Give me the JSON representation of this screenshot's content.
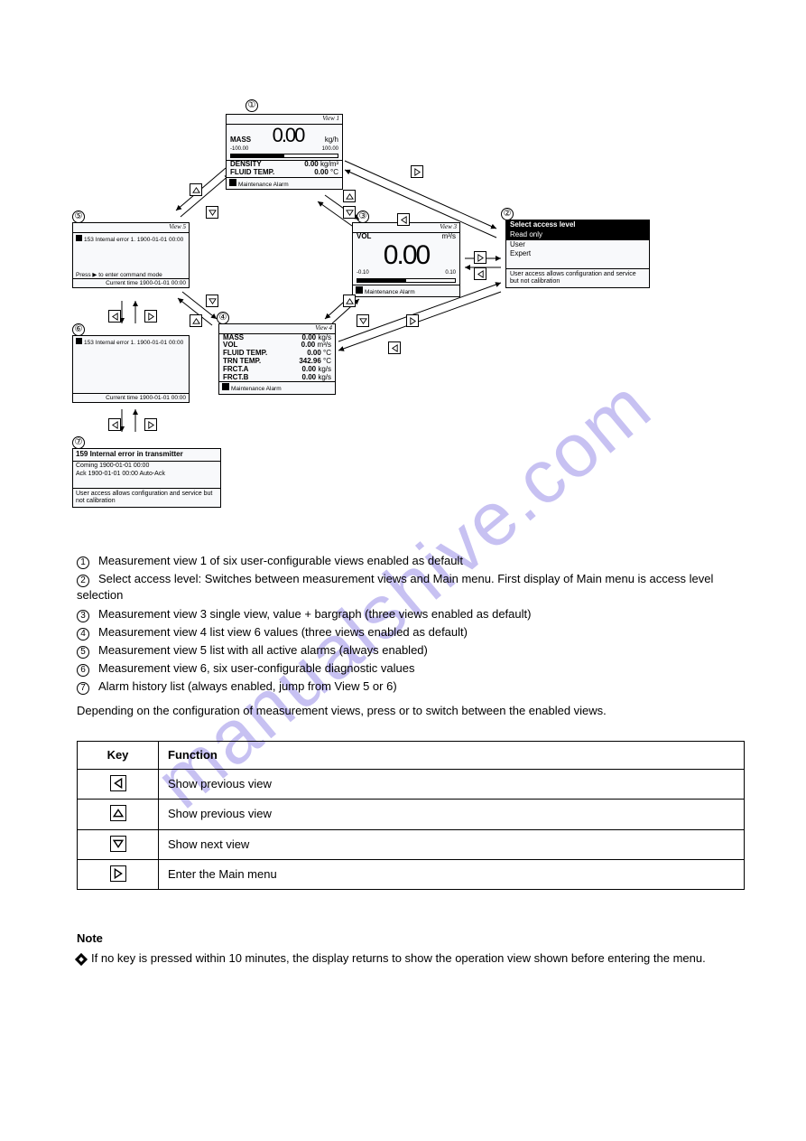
{
  "watermark": "manualshive.com",
  "labels": {
    "1": "①",
    "2": "②",
    "3": "③",
    "4": "④",
    "5": "⑤",
    "6": "⑥",
    "7": "⑦"
  },
  "panel1": {
    "title": "View 1",
    "mass_label": "MASS",
    "mass_value": "0.00",
    "mass_unit": "kg/h",
    "range_lo": "-100.00",
    "range_hi": "100.00",
    "density_label": "DENSITY",
    "density_value": "0.00",
    "density_unit": "kg/m³",
    "temp_label": "FLUID TEMP.",
    "temp_value": "0.00",
    "temp_unit": "°C",
    "status": "Maintenance Alarm"
  },
  "panel2": {
    "header": "Select access level",
    "options": [
      "Read only",
      "User",
      "Expert"
    ],
    "selected_index": 0,
    "hint": "User access allows configuration and service but not calibration"
  },
  "panel3": {
    "title": "View 3",
    "label": "VOL",
    "unit": "m³/s",
    "value": "0.00",
    "range_lo": "-0.10",
    "range_hi": "0.10",
    "status": "Maintenance Alarm"
  },
  "panel4": {
    "title": "View 4",
    "rows": [
      {
        "l": "MASS",
        "v": "0.00",
        "u": "kg/s"
      },
      {
        "l": "VOL",
        "v": "0.00",
        "u": "m³/s"
      },
      {
        "l": "FLUID TEMP.",
        "v": "0.00",
        "u": "°C"
      },
      {
        "l": "TRN TEMP.",
        "v": "342.96",
        "u": "°C"
      },
      {
        "l": "FRCT.A",
        "v": "0.00",
        "u": "kg/s"
      },
      {
        "l": "FRCT.B",
        "v": "0.00",
        "u": "kg/s"
      }
    ],
    "status": "Maintenance Alarm"
  },
  "panel5": {
    "title": "View 5",
    "line": "153  Internal error 1.  1900-01-01 00:00",
    "hint": "Press ▶ to enter command mode",
    "footer": "Current time 1900-01-01 00:00"
  },
  "panel6": {
    "line": "153  Internal error 1.  1900-01-01 00:00",
    "footer": "Current time 1900-01-01 00:00"
  },
  "panel7": {
    "header": "159 Internal error in transmitter",
    "l1": "Coming  1900-01-01 00:00",
    "l2": "Ack      1900-01-01 00:00    Auto-Ack",
    "hint": "User access allows configuration and service but not calibration"
  },
  "key_icons": {
    "left": "◁",
    "up": "△",
    "down": "▽",
    "right": "▷"
  },
  "legend": [
    "Measurement view 1 of six user-configurable views enabled as default",
    "Select access level: Switches between measurement views and Main menu. First display of Main menu is access level selection",
    "Measurement view 3 single view, value + bargraph (three views enabled as default)",
    "Measurement view 4 list view 6 values (three views enabled as default)",
    "Measurement view 5 list with all active alarms (always enabled)",
    "Measurement view 6, six user-configurable diagnostic values",
    "Alarm history list (always enabled, jump from View 5 or 6)"
  ],
  "para_below": "Depending on the configuration of measurement views, press        or        to switch between the enabled views.",
  "table": {
    "rows": [
      {
        "key": "left",
        "desc": "Show previous view"
      },
      {
        "key": "up",
        "desc": "Show previous view"
      },
      {
        "key": "down",
        "desc": "Show next view"
      },
      {
        "key": "right",
        "desc": "Enter the Main menu"
      }
    ]
  },
  "note": "If no key is pressed within 10 minutes, the display returns to show the operation view shown before entering the menu."
}
